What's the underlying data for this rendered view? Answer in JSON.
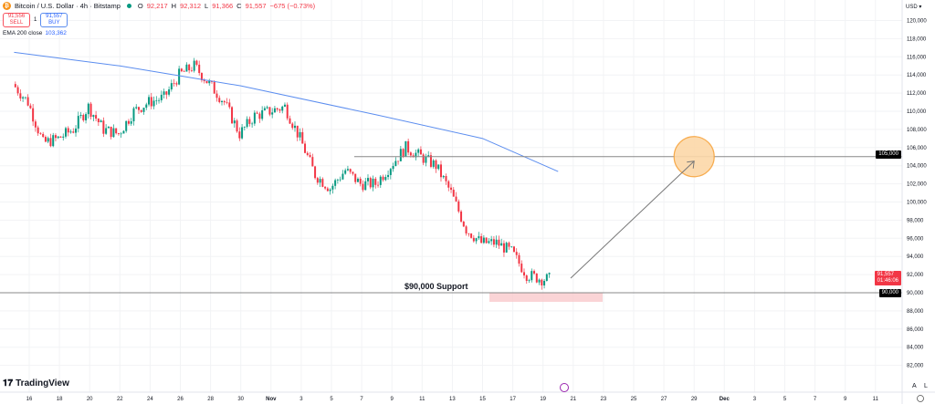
{
  "header": {
    "symbol": "Bitcoin / U.S. Dollar · 4h · Bitstamp",
    "open_label": "O",
    "open": "92,217",
    "high_label": "H",
    "high": "92,312",
    "low_label": "L",
    "low": "91,366",
    "close_label": "C",
    "close": "91,557",
    "change": "−675 (−0.73%)",
    "sell_price": "91,556",
    "sell_label": "SELL",
    "spread": "1",
    "buy_price": "91,557",
    "buy_label": "BUY",
    "ema_label": "EMA 200 close",
    "ema_value": "103,362"
  },
  "axis": {
    "currency": "USD",
    "auto_label": "A",
    "log_label": "L"
  },
  "branding": {
    "logo_text": "TradingView"
  },
  "colors": {
    "up": "#089981",
    "down": "#f23645",
    "ema": "#5b8def",
    "target": "#f7a23a",
    "support_zone": "#f9c9cc"
  },
  "chart_data": {
    "type": "candlestick",
    "interval": "4h",
    "ylim": [
      81000,
      121000
    ],
    "y_ticks": [
      "82,000",
      "84,000",
      "86,000",
      "88,000",
      "90,000",
      "92,000",
      "94,000",
      "96,000",
      "98,000",
      "100,000",
      "102,000",
      "104,000",
      "106,000",
      "108,000",
      "110,000",
      "112,000",
      "114,000",
      "116,000",
      "118,000",
      "120,000"
    ],
    "y_tick_values": [
      82000,
      84000,
      86000,
      88000,
      90000,
      92000,
      94000,
      96000,
      98000,
      100000,
      102000,
      104000,
      106000,
      108000,
      110000,
      112000,
      114000,
      116000,
      118000,
      120000
    ],
    "x_ticks": [
      "16",
      "18",
      "20",
      "22",
      "24",
      "26",
      "28",
      "30",
      "Nov",
      "3",
      "5",
      "7",
      "9",
      "11",
      "13",
      "15",
      "17",
      "19",
      "21",
      "23",
      "25",
      "27",
      "29",
      "Dec",
      "3",
      "5",
      "7",
      "9",
      "11"
    ],
    "daily_close_approx": {
      "dates": [
        "Oct 15",
        "Oct 16",
        "Oct 17",
        "Oct 18",
        "Oct 19",
        "Oct 20",
        "Oct 21",
        "Oct 22",
        "Oct 23",
        "Oct 24",
        "Oct 25",
        "Oct 26",
        "Oct 27",
        "Oct 28",
        "Oct 29",
        "Oct 30",
        "Oct 31",
        "Nov 1",
        "Nov 2",
        "Nov 3",
        "Nov 4",
        "Nov 5",
        "Nov 6",
        "Nov 7",
        "Nov 8",
        "Nov 9",
        "Nov 10",
        "Nov 11",
        "Nov 12",
        "Nov 13",
        "Nov 14",
        "Nov 15",
        "Nov 16",
        "Nov 17",
        "Nov 18",
        "Nov 19",
        "Nov 20"
      ],
      "close": [
        113000,
        111000,
        106500,
        107000,
        108000,
        110500,
        108000,
        107500,
        110000,
        111000,
        111500,
        114000,
        115000,
        113000,
        111000,
        107500,
        109500,
        110000,
        110500,
        107000,
        103000,
        101500,
        103500,
        102000,
        102000,
        104000,
        106000,
        105000,
        104000,
        101000,
        97000,
        95500,
        95500,
        94500,
        92000,
        91500,
        91557
      ]
    },
    "ema200": {
      "name": "EMA 200 close",
      "dates": [
        "Oct 15",
        "Oct 22",
        "Oct 30",
        "Nov 8",
        "Nov 15",
        "Nov 20"
      ],
      "values": [
        116500,
        115000,
        112800,
        109600,
        107000,
        103362
      ]
    },
    "annotations": {
      "support_level": 90000,
      "support_label": "$90,000 Support",
      "resistance_level": 105000,
      "target_price": 105000,
      "target_date": "Nov 29",
      "last_price": "91,557",
      "countdown": "01:46:06",
      "support_tag": "90,000",
      "resistance_tag": "105,000"
    },
    "grid": true
  }
}
